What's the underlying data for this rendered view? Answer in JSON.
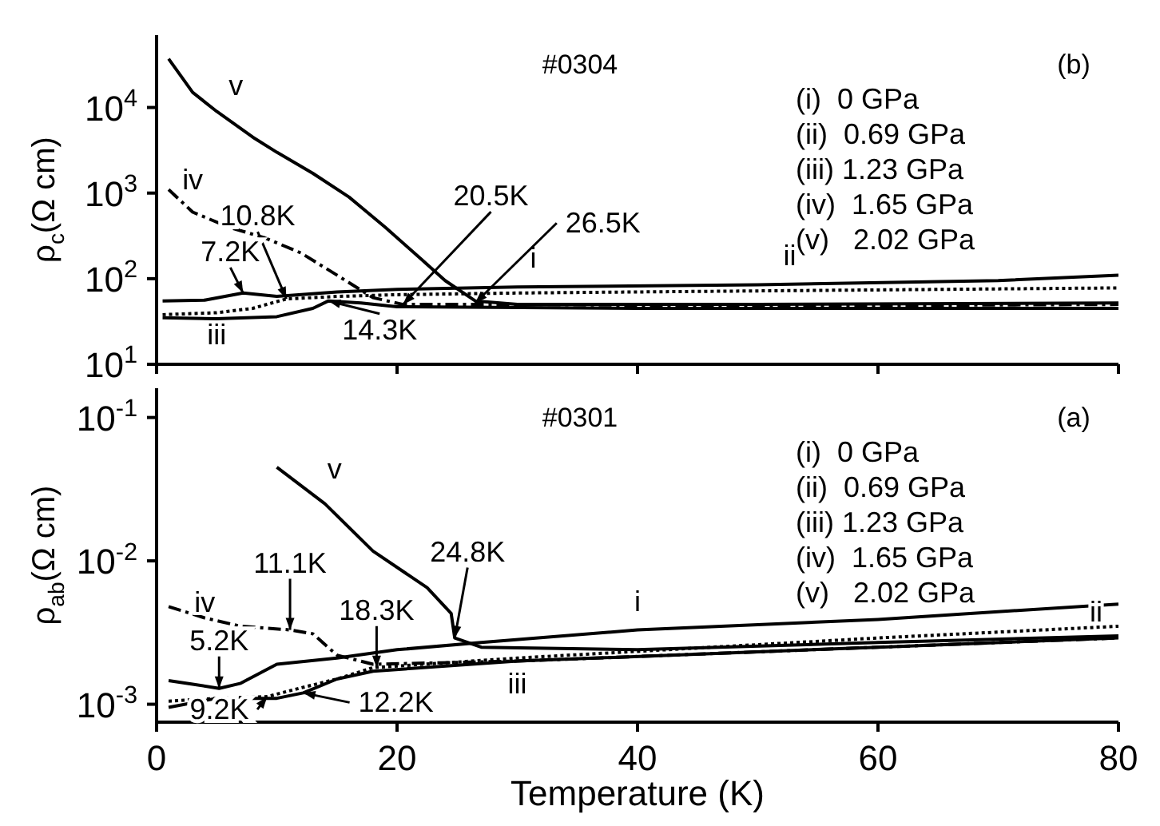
{
  "chart_data": [
    {
      "type": "line",
      "ylabel": "ρ$_{c}$(Ω cm)",
      "xlim": [
        0,
        80
      ],
      "xticks": [
        0,
        20,
        40,
        60,
        80
      ],
      "ylim": [
        10,
        70000
      ],
      "log": "y",
      "yticks": [
        {
          "value": 10,
          "label": "10$^{1}$"
        },
        {
          "value": 100,
          "label": "10$^{2}$"
        },
        {
          "value": 1000,
          "label": "10$^{3}$"
        },
        {
          "value": 10000,
          "label": "10$^{4}$"
        }
      ],
      "tick_labels": "y",
      "marker": "none",
      "series": [
        {
          "name": "i",
          "color": "#000000",
          "line_style": "solid",
          "x": [
            0.5,
            4,
            7.2,
            10,
            15,
            20,
            30,
            50,
            70,
            80
          ],
          "values": [
            55,
            56,
            68,
            62,
            70,
            75,
            80,
            85,
            95,
            110
          ]
        },
        {
          "name": "ii",
          "color": "#000000",
          "line_style": "dotted",
          "x": [
            0.5,
            5,
            8,
            10.8,
            15,
            20,
            30,
            50,
            80
          ],
          "values": [
            38,
            40,
            45,
            58,
            62,
            65,
            68,
            72,
            78
          ]
        },
        {
          "name": "iii",
          "color": "#000000",
          "line_style": "solid",
          "x": [
            0.5,
            5,
            10,
            13,
            14.3,
            17,
            20,
            40,
            80
          ],
          "values": [
            35,
            34,
            36,
            45,
            55,
            52,
            47,
            45,
            45
          ]
        },
        {
          "name": "iv",
          "color": "#000000",
          "line_style": "dashed",
          "x": [
            1,
            3,
            6,
            9,
            12,
            15,
            18,
            20.5,
            30,
            50,
            80
          ],
          "values": [
            1100,
            600,
            400,
            300,
            200,
            110,
            60,
            50,
            50,
            48,
            50
          ]
        },
        {
          "name": "v",
          "color": "#000000",
          "line_style": "solid",
          "x": [
            1,
            3,
            5,
            8,
            10,
            13,
            16,
            19,
            22,
            24,
            26.5,
            30,
            50,
            80
          ],
          "values": [
            37000,
            15000,
            9000,
            4500,
            3000,
            1700,
            900,
            400,
            170,
            95,
            55,
            50,
            50,
            52
          ]
        }
      ],
      "annotations": [
        "#0304",
        "(b)",
        "(i)  0 GPa",
        "(ii)  0.69 GPa",
        "(iii) 1.23 GPa",
        "(iv)  1.65 GPa",
        "(v)   2.02 GPa",
        {
          "text": "7.2K",
          "x": 7.2,
          "y": 68
        },
        {
          "text": "10.8K",
          "x": 10.8,
          "y": 58
        },
        {
          "text": "14.3K",
          "x": 14.3,
          "y": 55
        },
        {
          "text": "20.5K",
          "x": 20.5,
          "y": 50
        },
        {
          "text": "26.5K",
          "x": 26.5,
          "y": 52
        }
      ]
    },
    {
      "type": "line",
      "xlabel": "Temperature (K)",
      "ylabel": "ρ$_{ab}$(Ω cm)",
      "xlim": [
        0,
        80
      ],
      "xticks": [
        0,
        20,
        40,
        60,
        80
      ],
      "ylim": [
        0.00075,
        0.16
      ],
      "log": "y",
      "yticks": [
        {
          "value": 0.001,
          "label": "10$^{-3}$"
        },
        {
          "value": 0.01,
          "label": "10$^{-2}$"
        },
        {
          "value": 0.1,
          "label": "10$^{-1}$"
        }
      ],
      "marker": "none",
      "series": [
        {
          "name": "i",
          "color": "#000000",
          "line_style": "solid",
          "x": [
            1,
            3,
            5.2,
            7,
            10,
            15,
            20,
            27,
            40,
            60,
            80
          ],
          "values": [
            0.00146,
            0.00138,
            0.00129,
            0.0014,
            0.0019,
            0.0021,
            0.0024,
            0.0027,
            0.0033,
            0.0039,
            0.005
          ]
        },
        {
          "name": "ii",
          "color": "#000000",
          "line_style": "dotted",
          "x": [
            1,
            5,
            9.2,
            12,
            15,
            18,
            30,
            60,
            80
          ],
          "values": [
            0.00105,
            0.0011,
            0.00113,
            0.0013,
            0.0015,
            0.0018,
            0.0021,
            0.0029,
            0.0035
          ]
        },
        {
          "name": "iii",
          "color": "#000000",
          "line_style": "solid",
          "x": [
            1,
            5,
            10,
            12.2,
            15,
            18,
            30,
            60,
            80
          ],
          "values": [
            0.00095,
            0.0011,
            0.0011,
            0.0012,
            0.0015,
            0.0017,
            0.002,
            0.0025,
            0.0029
          ]
        },
        {
          "name": "iv",
          "color": "#000000",
          "line_style": "dashed",
          "x": [
            1,
            4,
            7,
            11.1,
            13,
            15,
            18,
            30,
            80
          ],
          "values": [
            0.0048,
            0.004,
            0.0035,
            0.0033,
            0.0031,
            0.0022,
            0.0019,
            0.002,
            0.0029
          ]
        },
        {
          "name": "v",
          "color": "#000000",
          "line_style": "solid",
          "x": [
            10,
            14,
            18,
            22.5,
            24.5,
            24.8,
            27,
            40,
            60,
            80
          ],
          "values": [
            0.045,
            0.025,
            0.0117,
            0.0065,
            0.0043,
            0.0029,
            0.0025,
            0.0024,
            0.0027,
            0.003
          ]
        }
      ],
      "annotations": [
        "#0301",
        "(a)",
        "(i)  0 GPa",
        "(ii)  0.69 GPa",
        "(iii) 1.23 GPa",
        "(iv)  1.65 GPa",
        "(v)   2.02 GPa",
        {
          "text": "5.2K",
          "x": 5.2,
          "y": 0.00129
        },
        {
          "text": "11.1K",
          "x": 11.1,
          "y": 0.0033
        },
        {
          "text": "18.3K",
          "x": 18.3,
          "y": 0.0018
        },
        {
          "text": "24.8K",
          "x": 24.8,
          "y": 0.0029
        },
        {
          "text": "9.2K",
          "x": 9.2,
          "y": 0.00113
        },
        {
          "text": "12.2K",
          "x": 12.2,
          "y": 0.0012
        }
      ]
    }
  ]
}
